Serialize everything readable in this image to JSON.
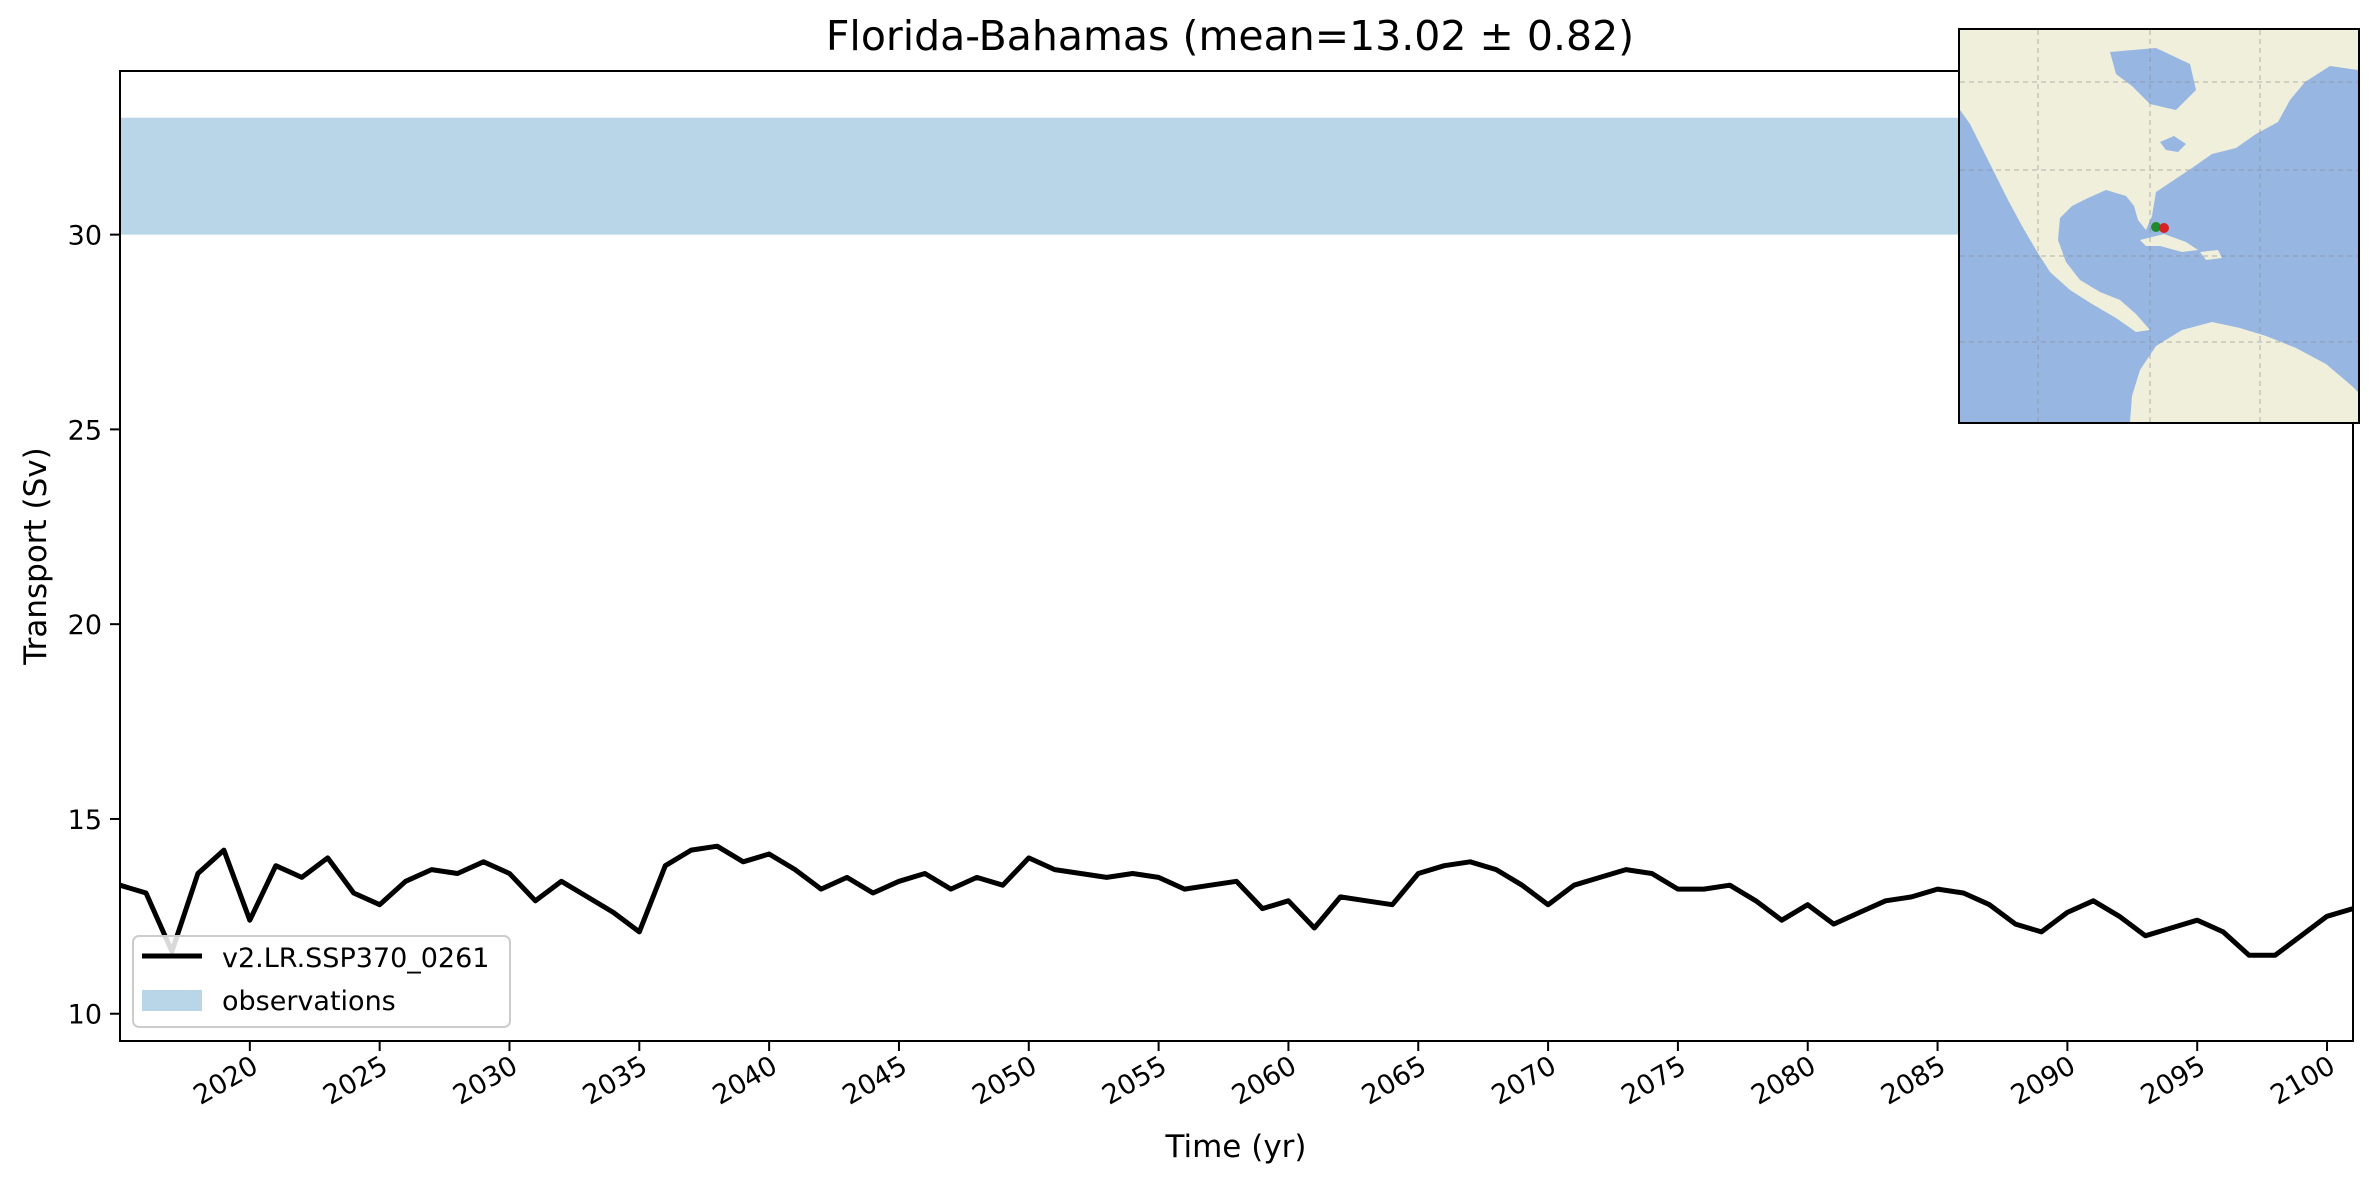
{
  "chart_data": {
    "type": "line",
    "title": "Florida-Bahamas (mean=13.02 ± 0.82)",
    "xlabel": "Time (yr)",
    "ylabel": "Transport (Sv)",
    "xlim": [
      2015,
      2101
    ],
    "ylim": [
      9.3,
      34.2
    ],
    "xticks": [
      2020,
      2025,
      2030,
      2035,
      2040,
      2045,
      2050,
      2055,
      2060,
      2065,
      2070,
      2075,
      2080,
      2085,
      2090,
      2095,
      2100
    ],
    "xtick_labels": [
      "2020",
      "2025",
      "2030",
      "2035",
      "2040",
      "2045",
      "2050",
      "2055",
      "2060",
      "2065",
      "2070",
      "2075",
      "2080",
      "2085",
      "2090",
      "2095",
      "2100"
    ],
    "yticks": [
      10,
      15,
      20,
      25,
      30
    ],
    "ytick_labels": [
      "10",
      "15",
      "20",
      "25",
      "30"
    ],
    "grid": false,
    "legend": {
      "placement": "lower-left",
      "entries": [
        "v2.LR.SSP370_0261",
        "observations"
      ]
    },
    "observations_band": {
      "name": "observations",
      "ymin": 30,
      "ymax": 33,
      "color": "#b9d5e8"
    },
    "series": [
      {
        "name": "v2.LR.SSP370_0261",
        "color": "#000000",
        "x": [
          2015,
          2016,
          2017,
          2018,
          2019,
          2020,
          2021,
          2022,
          2023,
          2024,
          2025,
          2026,
          2027,
          2028,
          2029,
          2030,
          2031,
          2032,
          2033,
          2034,
          2035,
          2036,
          2037,
          2038,
          2039,
          2040,
          2041,
          2042,
          2043,
          2044,
          2045,
          2046,
          2047,
          2048,
          2049,
          2050,
          2051,
          2052,
          2053,
          2054,
          2055,
          2056,
          2057,
          2058,
          2059,
          2060,
          2061,
          2062,
          2063,
          2064,
          2065,
          2066,
          2067,
          2068,
          2069,
          2070,
          2071,
          2072,
          2073,
          2074,
          2075,
          2076,
          2077,
          2078,
          2079,
          2080,
          2081,
          2082,
          2083,
          2084,
          2085,
          2086,
          2087,
          2088,
          2089,
          2090,
          2091,
          2092,
          2093,
          2094,
          2095,
          2096,
          2097,
          2098,
          2099,
          2100,
          2101
        ],
        "y": [
          13.3,
          13.1,
          11.6,
          13.6,
          14.2,
          12.4,
          13.8,
          13.5,
          14.0,
          13.1,
          12.8,
          13.4,
          13.7,
          13.6,
          13.9,
          13.6,
          12.9,
          13.4,
          13.0,
          12.6,
          12.1,
          13.8,
          14.2,
          14.3,
          13.9,
          14.1,
          13.7,
          13.2,
          13.5,
          13.1,
          13.4,
          13.6,
          13.2,
          13.5,
          13.3,
          14.0,
          13.7,
          13.6,
          13.5,
          13.6,
          13.5,
          13.2,
          13.3,
          13.4,
          12.7,
          12.9,
          12.2,
          13.0,
          12.9,
          12.8,
          13.6,
          13.8,
          13.9,
          13.7,
          13.3,
          12.8,
          13.3,
          13.5,
          13.7,
          13.6,
          13.2,
          13.2,
          13.3,
          12.9,
          12.4,
          12.8,
          12.3,
          12.6,
          12.9,
          13.0,
          13.2,
          13.1,
          12.8,
          12.3,
          12.1,
          12.6,
          12.9,
          12.5,
          12.0,
          12.2,
          12.4,
          12.1,
          11.5,
          11.5,
          12.0,
          12.5,
          12.7
        ]
      }
    ]
  }
}
